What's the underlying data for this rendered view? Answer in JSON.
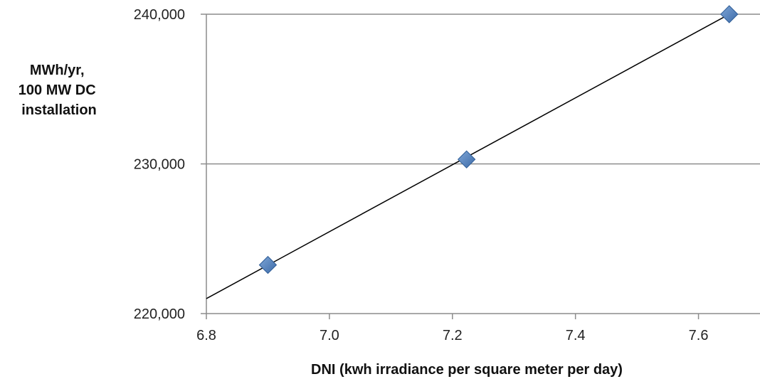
{
  "chart_data": {
    "type": "scatter",
    "title": "",
    "xlabel": "DNI (kwh irradiance per square meter per day)",
    "ylabel_lines": [
      "MWh/yr,",
      "100 MW DC",
      "installation"
    ],
    "xlim": [
      6.8,
      7.7
    ],
    "ylim": [
      220000,
      240000
    ],
    "xticks": [
      6.8,
      7.0,
      7.2,
      7.4,
      7.6
    ],
    "xtick_labels": [
      "6.8",
      "7.0",
      "7.2",
      "7.4",
      "7.6"
    ],
    "yticks": [
      220000,
      230000,
      240000
    ],
    "ytick_labels": [
      "220,000",
      "230,000",
      "240,000"
    ],
    "grid": "horizontal",
    "legend": "none",
    "series": [
      {
        "marker": "diamond",
        "color": "#4a7ab8",
        "points": [
          {
            "x": 6.9,
            "y": 223250
          },
          {
            "x": 7.223,
            "y": 230300
          },
          {
            "x": 7.65,
            "y": 240000
          }
        ]
      }
    ],
    "trendline": {
      "type": "linear",
      "color": "#000000",
      "from": {
        "x": 6.8,
        "y": 221000
      },
      "to": {
        "x": 7.65,
        "y": 240000
      }
    }
  }
}
